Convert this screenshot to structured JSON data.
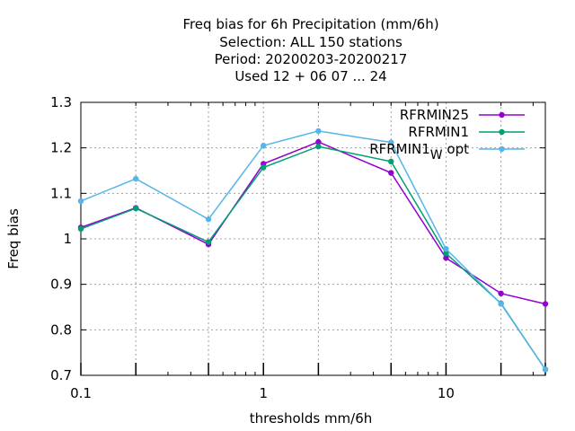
{
  "chart_data": {
    "type": "line",
    "title_lines": [
      "Freq bias  for 6h Precipitation (mm/6h)",
      "Selection: ALL    150 stations",
      "Period: 20200203-20200217",
      "Used  12 + 06 07 ... 24"
    ],
    "xlabel": "thresholds mm/6h",
    "ylabel": "Freq bias",
    "x_scale": "log",
    "xlim": [
      0.1,
      35
    ],
    "ylim": [
      0.7,
      1.3
    ],
    "x_ticks": [
      {
        "value": 0.1,
        "label": "0.1"
      },
      {
        "value": 1,
        "label": "1"
      },
      {
        "value": 10,
        "label": "10"
      }
    ],
    "y_ticks": [
      {
        "value": 0.7,
        "label": "0.7"
      },
      {
        "value": 0.8,
        "label": "0.8"
      },
      {
        "value": 0.9,
        "label": "0.9"
      },
      {
        "value": 1.0,
        "label": "1"
      },
      {
        "value": 1.1,
        "label": "1.1"
      },
      {
        "value": 1.2,
        "label": "1.2"
      },
      {
        "value": 1.3,
        "label": "1.3"
      }
    ],
    "grid": true,
    "legend_position": "top-right",
    "x": [
      0.1,
      0.2,
      0.5,
      1,
      2,
      5,
      10,
      20,
      35
    ],
    "series": [
      {
        "name": "RFRMIN25",
        "color": "#9400d3",
        "values": [
          1.025,
          1.068,
          0.988,
          1.165,
          1.213,
          1.145,
          0.958,
          0.88,
          0.857
        ]
      },
      {
        "name": "RFRMIN1",
        "color": "#009e73",
        "values": [
          1.022,
          1.067,
          0.993,
          1.157,
          1.203,
          1.17,
          0.968,
          0.858,
          0.713
        ]
      },
      {
        "name": "RFRMIN1",
        "name_subscript": "W",
        "name_suffix": "opt",
        "color": "#56b4e9",
        "values": [
          1.083,
          1.132,
          1.043,
          1.205,
          1.237,
          1.212,
          0.978,
          0.857,
          0.713
        ]
      }
    ]
  }
}
